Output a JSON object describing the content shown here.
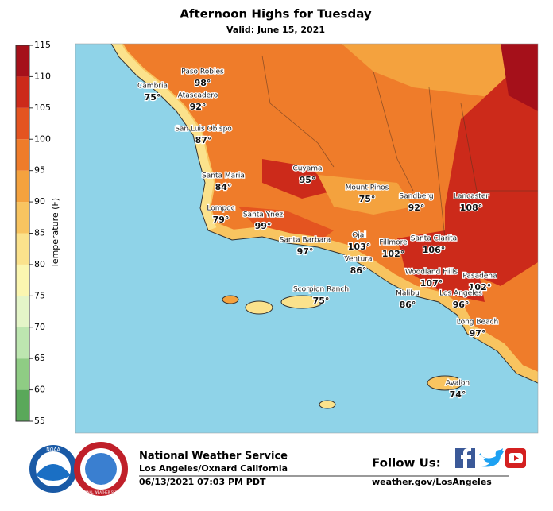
{
  "header": {
    "title": "Afternoon Highs for Tuesday",
    "subtitle": "Valid: June 15, 2021"
  },
  "colorbar": {
    "label": "Temperature (F)",
    "ticks": [
      55,
      60,
      65,
      70,
      75,
      80,
      85,
      90,
      95,
      100,
      105,
      110,
      115
    ],
    "colors": [
      "#5aa85a",
      "#8fcc84",
      "#bde6b0",
      "#e4f5c8",
      "#fbf6b0",
      "#fbe28c",
      "#f8c460",
      "#f4a23e",
      "#ef7c2a",
      "#e45420",
      "#cc2a1a",
      "#a5101a"
    ]
  },
  "cities": [
    {
      "name": "Paso Robles",
      "temp": "98°"
    },
    {
      "name": "Cambria",
      "temp": "75°"
    },
    {
      "name": "Atascadero",
      "temp": "92°"
    },
    {
      "name": "San Luis Obispo",
      "temp": "87°"
    },
    {
      "name": "Santa Maria",
      "temp": "84°"
    },
    {
      "name": "Lompoc",
      "temp": "79°"
    },
    {
      "name": "Cuyama",
      "temp": "95°"
    },
    {
      "name": "Santa Ynez",
      "temp": "99°"
    },
    {
      "name": "Santa Barbara",
      "temp": "97°"
    },
    {
      "name": "Mount Pinos",
      "temp": "75°"
    },
    {
      "name": "Sandberg",
      "temp": "92°"
    },
    {
      "name": "Lancaster",
      "temp": "108°"
    },
    {
      "name": "Ojai",
      "temp": "103°"
    },
    {
      "name": "Fillmore",
      "temp": "102°"
    },
    {
      "name": "Santa Clarita",
      "temp": "106°"
    },
    {
      "name": "Ventura",
      "temp": "86°"
    },
    {
      "name": "Woodland Hills",
      "temp": "107°"
    },
    {
      "name": "Pasadena",
      "temp": "102°"
    },
    {
      "name": "Malibu",
      "temp": "86°"
    },
    {
      "name": "Los Angeles",
      "temp": "96°"
    },
    {
      "name": "Scorpion Ranch",
      "temp": "75°"
    },
    {
      "name": "Long Beach",
      "temp": "97°"
    },
    {
      "name": "Avalon",
      "temp": "74°"
    }
  ],
  "footer": {
    "agency": "National Weather Service",
    "office": "Los Angeles/Oxnard California",
    "issued": "06/13/2021 07:03 PM PDT",
    "follow": "Follow Us:",
    "website": "weather.gov/LosAngeles",
    "noaa": "NOAA",
    "nws": "NATIONAL WEATHER SERVICE"
  }
}
